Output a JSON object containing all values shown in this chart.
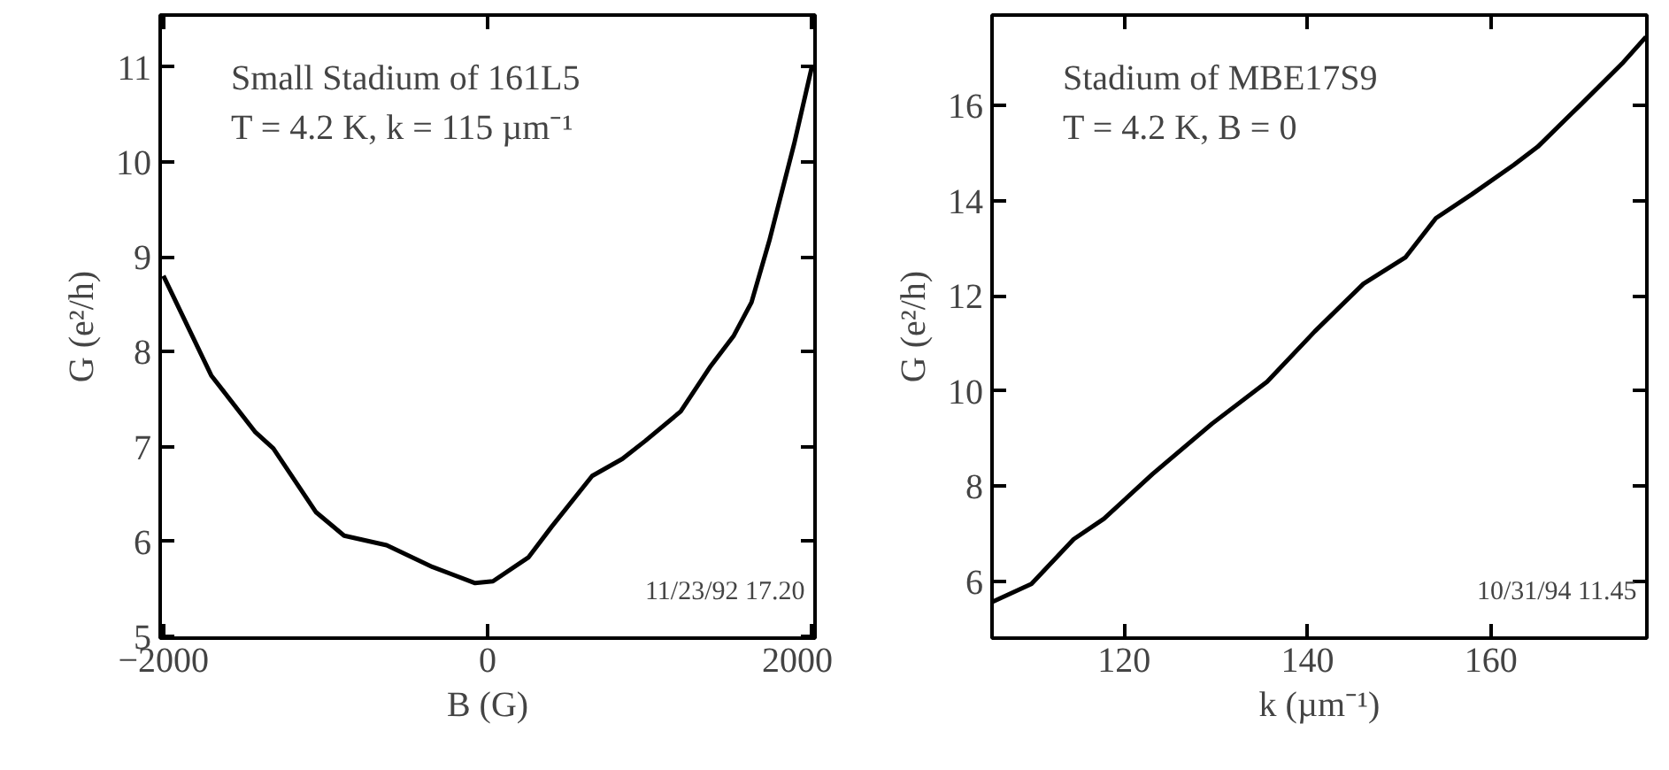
{
  "chart_data": [
    {
      "type": "line",
      "xlabel": "B (G)",
      "ylabel": "G (e²/h)",
      "annotations": [
        "Small Stadium of 161L5",
        "T = 4.2 K, k = 115 µm⁻¹",
        "11/23/92  17.20"
      ],
      "x": [
        -2000,
        -1705,
        -1432,
        -1322,
        -1060,
        -885,
        -623,
        -339,
        -77,
        33,
        251,
        393,
        645,
        831,
        973,
        1191,
        1377,
        1519,
        1628,
        1738,
        1891,
        2000
      ],
      "series": [
        {
          "color": "#000000",
          "values": [
            8.8,
            7.75,
            7.15,
            6.98,
            6.31,
            6.06,
            5.96,
            5.73,
            5.56,
            5.58,
            5.83,
            6.15,
            6.69,
            6.87,
            7.06,
            7.37,
            7.85,
            8.17,
            8.52,
            9.17,
            10.19,
            11.0
          ]
        }
      ],
      "xlim": [
        -2020,
        2020
      ],
      "ylim": [
        4.98,
        11.55
      ],
      "xticks": [
        -2000,
        0,
        2000
      ],
      "yticks": [
        5,
        6,
        7,
        8,
        9,
        10,
        11
      ],
      "grid": false
    },
    {
      "type": "line",
      "xlabel": "k (µm⁻¹)",
      "ylabel": "G (e²/h)",
      "annotations": [
        "Stadium of MBE17S9",
        "T = 4.2 K, B = 0",
        "10/31/94  11.45"
      ],
      "x": [
        105.6,
        109.9,
        114.5,
        117.8,
        123.1,
        129.6,
        135.6,
        140.8,
        146.1,
        150.7,
        154.0,
        157.9,
        162.5,
        165.1,
        169.7,
        174.3,
        176.9
      ],
      "series": [
        {
          "color": "#000000",
          "values": [
            5.56,
            5.94,
            6.88,
            7.31,
            8.25,
            9.31,
            10.19,
            11.25,
            12.25,
            12.81,
            13.63,
            14.13,
            14.75,
            15.13,
            16.0,
            16.88,
            17.44
          ]
        }
      ],
      "xlim": [
        105.6,
        177
      ],
      "ylim": [
        4.8,
        17.9
      ],
      "xticks": [
        120,
        140,
        160
      ],
      "yticks": [
        6,
        8,
        10,
        12,
        14,
        16
      ],
      "grid": false
    }
  ]
}
